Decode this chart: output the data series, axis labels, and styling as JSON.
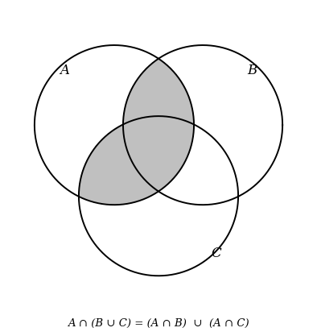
{
  "formula": "A ∩ (B ∪ C) = (A ∩ B)  ∪  (A ∩ C)",
  "cA": [
    0.35,
    0.6
  ],
  "cB": [
    0.65,
    0.6
  ],
  "cC": [
    0.5,
    0.36
  ],
  "r": 0.27,
  "label_A": "A",
  "label_B": "B",
  "label_C": "C",
  "shade_color": "#c0c0c0",
  "circle_edge_color": "#000000",
  "circle_linewidth": 1.4,
  "bg_color": "#ffffff",
  "formula_fontsize": 9.5,
  "label_fontsize": 12
}
